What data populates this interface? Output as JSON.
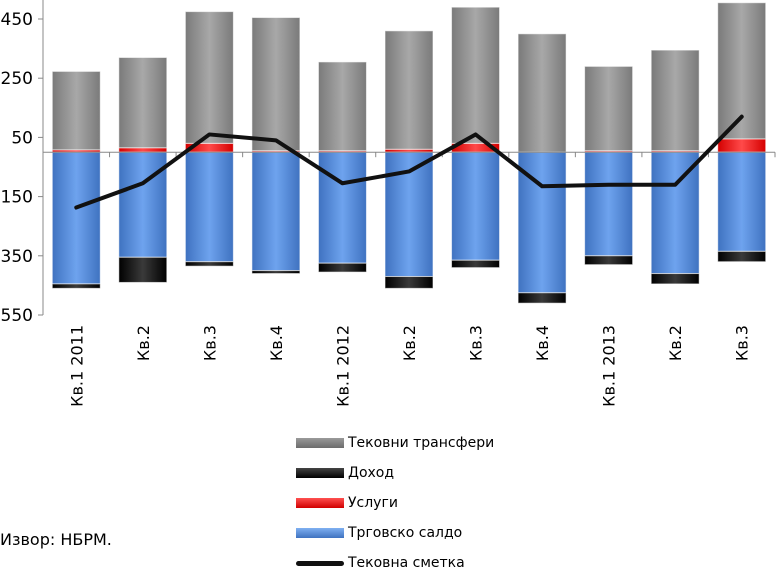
{
  "chart_data": {
    "type": "bar",
    "stacked": true,
    "categories": [
      "Кв.1 2011",
      "Кв.2",
      "Кв.3",
      "Кв.4",
      "Кв.1 2012",
      "Кв.2",
      "Кв.3",
      "Кв.4",
      "Кв.1 2013",
      "Кв.2",
      "Кв.3"
    ],
    "series": [
      {
        "name": "Тековни трансфери",
        "color": "#8c8c8c",
        "values": [
          265,
          305,
          445,
          450,
          300,
          400,
          460,
          400,
          285,
          340,
          460
        ]
      },
      {
        "name": "Доход",
        "color": "#111111",
        "values": [
          -15,
          -85,
          -15,
          -10,
          -30,
          -40,
          -25,
          -35,
          -30,
          -35,
          -35
        ]
      },
      {
        "name": "Услуги",
        "color": "#ee1111",
        "values": [
          8,
          15,
          30,
          5,
          5,
          10,
          30,
          0,
          5,
          5,
          45
        ]
      },
      {
        "name": "Трговско салдо",
        "color": "#4f86d6",
        "values": [
          -445,
          -355,
          -370,
          -400,
          -375,
          -420,
          -365,
          -475,
          -350,
          -410,
          -335
        ]
      }
    ],
    "line": {
      "name": "Тековна сметка",
      "color": "#111111",
      "values": [
        -187,
        -105,
        60,
        40,
        -105,
        -65,
        60,
        -115,
        -110,
        -110,
        120
      ]
    },
    "y_ticks": [
      450,
      250,
      50,
      -150,
      -350,
      -550
    ],
    "ylim": [
      -550,
      500
    ],
    "grid": false,
    "legend_position": "bottom-center"
  },
  "legend": [
    "Тековни трансфери",
    "Доход",
    "Услуги",
    "Трговско салдо",
    "Тековна сметка"
  ],
  "source": "Извор: НБРМ."
}
